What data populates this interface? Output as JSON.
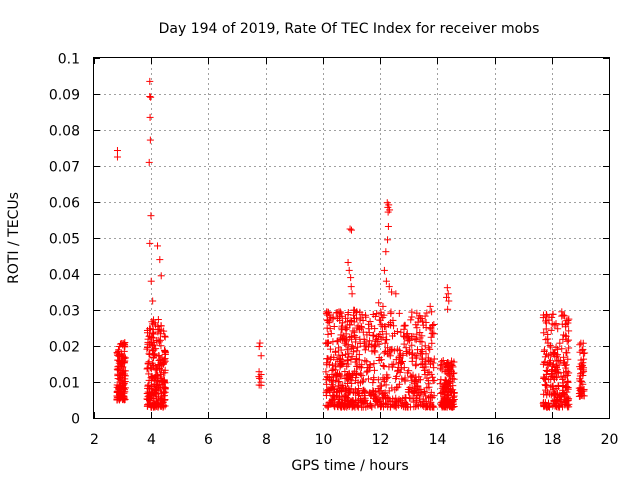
{
  "chart_data": {
    "type": "scatter",
    "title": "Day 194 of 2019, Rate Of TEC Index for receiver mobs",
    "xlabel": "GPS time / hours",
    "ylabel": "ROTI / TECUs",
    "xlim": [
      2,
      20
    ],
    "ylim": [
      0,
      0.1
    ],
    "xticks": [
      2,
      4,
      6,
      8,
      10,
      12,
      14,
      16,
      18,
      20
    ],
    "xtick_labels": [
      "2",
      "4",
      "6",
      "8",
      "10",
      "12",
      "14",
      "16",
      "18",
      "20"
    ],
    "yticks": [
      0,
      0.01,
      0.02,
      0.03,
      0.04,
      0.05,
      0.06,
      0.07,
      0.08,
      0.09,
      0.1
    ],
    "ytick_labels": [
      "0",
      "0.01",
      "0.02",
      "0.03",
      "0.04",
      "0.05",
      "0.06",
      "0.07",
      "0.08",
      "0.09",
      "0.1"
    ],
    "grid": true,
    "marker": "+",
    "color": "#ff0000",
    "clusters": [
      {
        "x": [
          2.8,
          3.1
        ],
        "y": [
          0.005,
          0.021
        ],
        "n": 140
      },
      {
        "x": [
          3.85,
          4.5
        ],
        "y": [
          0.003,
          0.028
        ],
        "n": 240
      },
      {
        "x": [
          7.75,
          7.85
        ],
        "y": [
          0.009,
          0.021
        ],
        "n": 10
      },
      {
        "x": [
          10.1,
          11.3
        ],
        "y": [
          0.003,
          0.03
        ],
        "n": 330
      },
      {
        "x": [
          11.3,
          13.9
        ],
        "y": [
          0.003,
          0.03
        ],
        "n": 450
      },
      {
        "x": [
          14.1,
          14.6
        ],
        "y": [
          0.003,
          0.016
        ],
        "n": 160
      },
      {
        "x": [
          17.7,
          18.6
        ],
        "y": [
          0.003,
          0.029
        ],
        "n": 220
      },
      {
        "x": [
          18.95,
          19.15
        ],
        "y": [
          0.006,
          0.021
        ],
        "n": 50
      }
    ],
    "points": [
      [
        2.82,
        0.0743
      ],
      [
        2.82,
        0.0725
      ],
      [
        3.95,
        0.0935
      ],
      [
        3.95,
        0.0893
      ],
      [
        3.98,
        0.0891
      ],
      [
        3.96,
        0.0835
      ],
      [
        3.97,
        0.0772
      ],
      [
        3.93,
        0.071
      ],
      [
        3.99,
        0.0562
      ],
      [
        3.95,
        0.0485
      ],
      [
        4.22,
        0.0478
      ],
      [
        4.3,
        0.044
      ],
      [
        4.35,
        0.0395
      ],
      [
        4.0,
        0.038
      ],
      [
        4.05,
        0.0325
      ],
      [
        10.95,
        0.0525
      ],
      [
        11.0,
        0.0522
      ],
      [
        10.88,
        0.0432
      ],
      [
        10.92,
        0.041
      ],
      [
        10.97,
        0.039
      ],
      [
        10.99,
        0.0365
      ],
      [
        11.02,
        0.0345
      ],
      [
        12.25,
        0.0598
      ],
      [
        12.3,
        0.0592
      ],
      [
        12.27,
        0.0585
      ],
      [
        12.33,
        0.0578
      ],
      [
        12.28,
        0.0572
      ],
      [
        12.29,
        0.0532
      ],
      [
        12.26,
        0.0495
      ],
      [
        12.2,
        0.0462
      ],
      [
        12.15,
        0.041
      ],
      [
        12.22,
        0.038
      ],
      [
        12.32,
        0.0365
      ],
      [
        12.4,
        0.035
      ],
      [
        12.55,
        0.0345
      ],
      [
        14.35,
        0.0362
      ],
      [
        14.38,
        0.0345
      ],
      [
        14.32,
        0.0335
      ],
      [
        14.4,
        0.0325
      ],
      [
        14.36,
        0.0302
      ],
      [
        13.75,
        0.031
      ],
      [
        13.8,
        0.0295
      ],
      [
        11.5,
        0.028
      ],
      [
        11.95,
        0.032
      ],
      [
        12.1,
        0.031
      ],
      [
        18.35,
        0.0295
      ],
      [
        18.4,
        0.0285
      ]
    ]
  }
}
